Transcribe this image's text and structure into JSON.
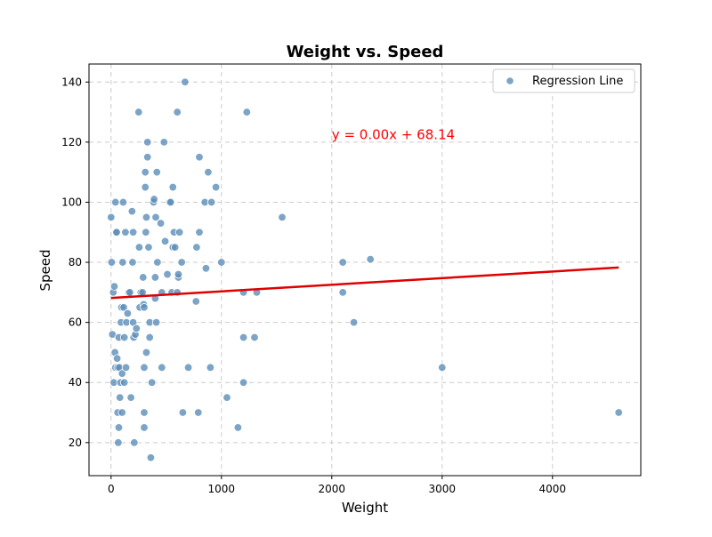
{
  "chart_data": {
    "type": "scatter",
    "title": "Weight vs. Speed",
    "xlabel": "Weight",
    "ylabel": "Speed",
    "xlim": [
      -200,
      4800
    ],
    "ylim": [
      9,
      146
    ],
    "x_ticks": [
      0,
      1000,
      2000,
      3000,
      4000
    ],
    "y_ticks": [
      20,
      40,
      60,
      80,
      100,
      120,
      140
    ],
    "grid": true,
    "legend_position": "top-right",
    "colors": {
      "points": "#5b8db8",
      "regression": "#e00000",
      "annotation": "#ff0000",
      "grid": "#cccccc"
    },
    "series": [
      {
        "name": "Regression Line",
        "points": [
          [
            0,
            95
          ],
          [
            5,
            80
          ],
          [
            12,
            56
          ],
          [
            20,
            70
          ],
          [
            25,
            40
          ],
          [
            30,
            72
          ],
          [
            35,
            50
          ],
          [
            40,
            100
          ],
          [
            40,
            45
          ],
          [
            45,
            90
          ],
          [
            50,
            90
          ],
          [
            55,
            48
          ],
          [
            60,
            45
          ],
          [
            60,
            30
          ],
          [
            65,
            20
          ],
          [
            70,
            55
          ],
          [
            70,
            25
          ],
          [
            75,
            45
          ],
          [
            80,
            35
          ],
          [
            85,
            40
          ],
          [
            90,
            60
          ],
          [
            95,
            65
          ],
          [
            100,
            30
          ],
          [
            100,
            43
          ],
          [
            105,
            80
          ],
          [
            110,
            100
          ],
          [
            115,
            65
          ],
          [
            120,
            55
          ],
          [
            120,
            40
          ],
          [
            130,
            90
          ],
          [
            135,
            45
          ],
          [
            140,
            60
          ],
          [
            150,
            63
          ],
          [
            160,
            70
          ],
          [
            170,
            70
          ],
          [
            180,
            35
          ],
          [
            190,
            97
          ],
          [
            195,
            80
          ],
          [
            200,
            90
          ],
          [
            200,
            60
          ],
          [
            205,
            55
          ],
          [
            210,
            20
          ],
          [
            220,
            56
          ],
          [
            230,
            58
          ],
          [
            250,
            130
          ],
          [
            255,
            85
          ],
          [
            260,
            65
          ],
          [
            270,
            70
          ],
          [
            285,
            70
          ],
          [
            290,
            75
          ],
          [
            295,
            66
          ],
          [
            300,
            65
          ],
          [
            300,
            25
          ],
          [
            300,
            30
          ],
          [
            300,
            45
          ],
          [
            310,
            105
          ],
          [
            310,
            110
          ],
          [
            315,
            90
          ],
          [
            320,
            50
          ],
          [
            320,
            95
          ],
          [
            330,
            120
          ],
          [
            330,
            115
          ],
          [
            340,
            85
          ],
          [
            350,
            55
          ],
          [
            350,
            60
          ],
          [
            360,
            15
          ],
          [
            370,
            40
          ],
          [
            385,
            100
          ],
          [
            390,
            101
          ],
          [
            400,
            75
          ],
          [
            400,
            68
          ],
          [
            405,
            95
          ],
          [
            410,
            60
          ],
          [
            415,
            110
          ],
          [
            420,
            80
          ],
          [
            450,
            93
          ],
          [
            460,
            70
          ],
          [
            460,
            45
          ],
          [
            480,
            120
          ],
          [
            490,
            87
          ],
          [
            510,
            76
          ],
          [
            530,
            100
          ],
          [
            540,
            100
          ],
          [
            550,
            70
          ],
          [
            560,
            85
          ],
          [
            560,
            105
          ],
          [
            570,
            90
          ],
          [
            580,
            85
          ],
          [
            600,
            130
          ],
          [
            600,
            70
          ],
          [
            610,
            75
          ],
          [
            610,
            76
          ],
          [
            620,
            90
          ],
          [
            640,
            80
          ],
          [
            650,
            30
          ],
          [
            670,
            140
          ],
          [
            700,
            45
          ],
          [
            770,
            67
          ],
          [
            775,
            85
          ],
          [
            790,
            30
          ],
          [
            800,
            115
          ],
          [
            800,
            90
          ],
          [
            850,
            100
          ],
          [
            860,
            78
          ],
          [
            880,
            110
          ],
          [
            900,
            45
          ],
          [
            910,
            100
          ],
          [
            950,
            105
          ],
          [
            1000,
            80
          ],
          [
            1050,
            35
          ],
          [
            1150,
            25
          ],
          [
            1200,
            70
          ],
          [
            1200,
            55
          ],
          [
            1200,
            40
          ],
          [
            1230,
            130
          ],
          [
            1300,
            55
          ],
          [
            1320,
            70
          ],
          [
            1550,
            95
          ],
          [
            2100,
            80
          ],
          [
            2100,
            70
          ],
          [
            2200,
            60
          ],
          [
            2350,
            81
          ],
          [
            3000,
            45
          ],
          [
            4600,
            30
          ]
        ]
      }
    ],
    "regression": {
      "slope": 0.0022,
      "intercept": 68.14,
      "x_range": [
        0,
        4600
      ],
      "equation_label": "y = 0.00x + 68.14",
      "label_position": [
        2000,
        121
      ]
    }
  }
}
